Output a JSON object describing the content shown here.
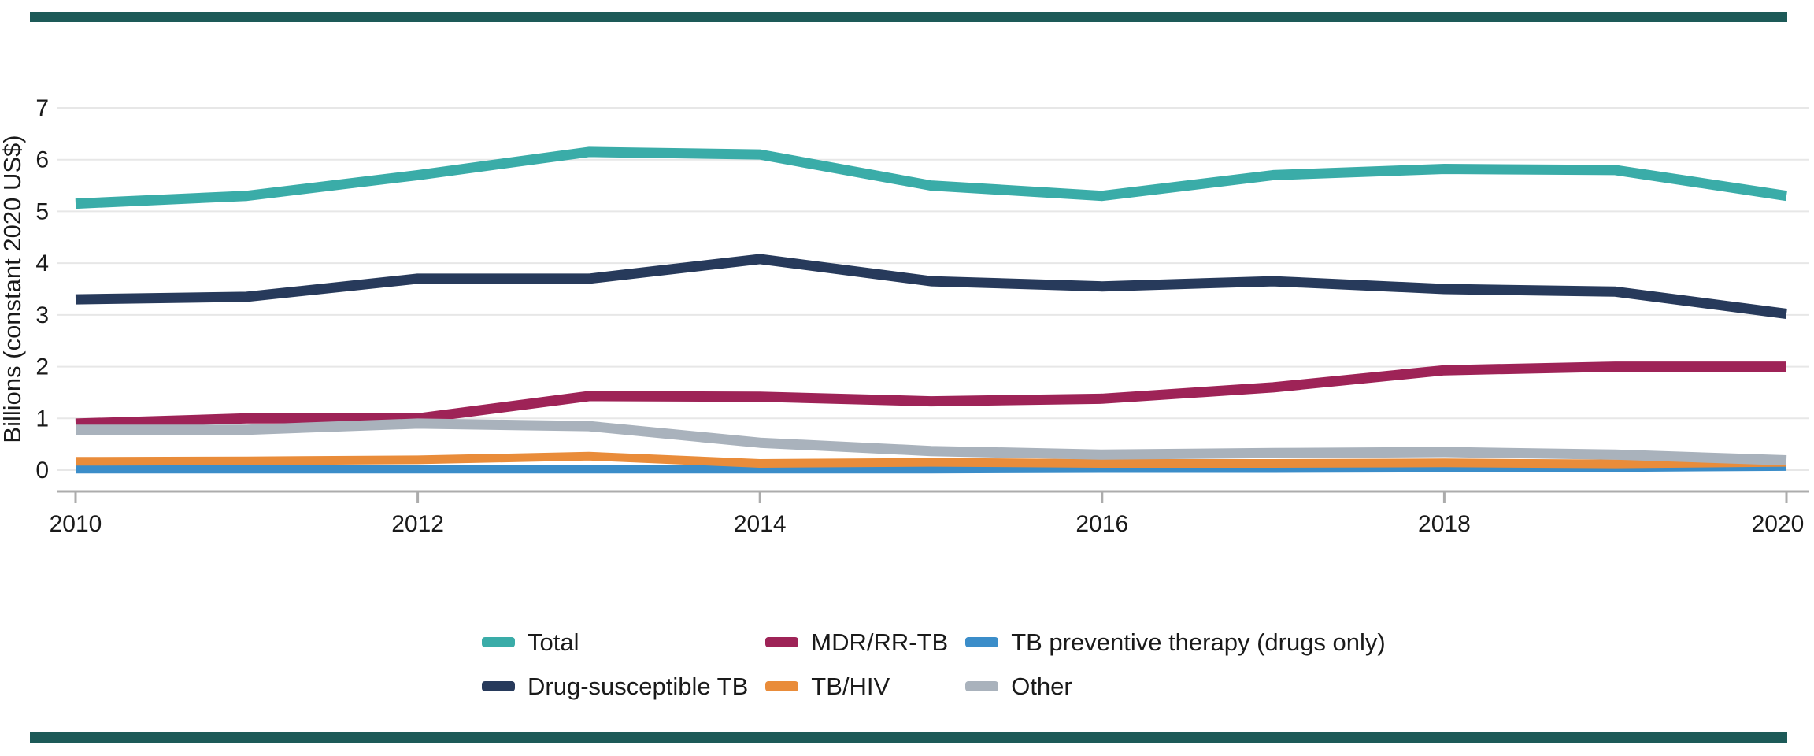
{
  "page": {
    "background": "#FFFFFF",
    "rule_color": "#1D5A58"
  },
  "chart_data": {
    "type": "line",
    "title": "",
    "xlabel": "",
    "ylabel": "Billions (constant 2020 US$)",
    "x": [
      2010,
      2011,
      2012,
      2013,
      2014,
      2015,
      2016,
      2017,
      2018,
      2019,
      2020
    ],
    "x_tick_years": [
      2010,
      2012,
      2014,
      2016,
      2018,
      2020
    ],
    "x_tick_labels": [
      "2010",
      "2012",
      "2014",
      "2016",
      "2018",
      "2020"
    ],
    "y_ticks": [
      0,
      1,
      2,
      3,
      4,
      5,
      6,
      7
    ],
    "y_tick_labels": [
      "0",
      "1",
      "2",
      "3",
      "4",
      "5",
      "6",
      "7"
    ],
    "ylim": [
      0,
      7
    ],
    "grid": "horizontal-only",
    "legend_position": "bottom",
    "series": [
      {
        "name": "Total",
        "color": "#3AACA8",
        "line_width": 13,
        "values": [
          5.15,
          5.3,
          5.7,
          6.15,
          6.1,
          5.5,
          5.3,
          5.7,
          5.82,
          5.8,
          5.3
        ]
      },
      {
        "name": "Drug-susceptible TB",
        "color": "#273A5B",
        "line_width": 13,
        "values": [
          3.3,
          3.35,
          3.7,
          3.7,
          4.08,
          3.65,
          3.55,
          3.65,
          3.5,
          3.45,
          3.02
        ]
      },
      {
        "name": "MDR/RR-TB",
        "color": "#9E2357",
        "line_width": 13,
        "values": [
          0.9,
          1.0,
          1.0,
          1.43,
          1.42,
          1.33,
          1.38,
          1.6,
          1.93,
          2.0,
          2.0
        ]
      },
      {
        "name": "TB preventive therapy (drugs only)",
        "color": "#3B8DC9",
        "line_width": 11,
        "values": [
          0.02,
          0.02,
          0.02,
          0.02,
          0.02,
          0.02,
          0.03,
          0.03,
          0.04,
          0.05,
          0.07
        ]
      },
      {
        "name": "TB/HIV",
        "color": "#E98C3A",
        "line_width": 11,
        "values": [
          0.17,
          0.18,
          0.2,
          0.27,
          0.13,
          0.15,
          0.13,
          0.13,
          0.14,
          0.12,
          0.15
        ]
      },
      {
        "name": "Other",
        "color": "#A9B2BC",
        "line_width": 13,
        "values": [
          0.78,
          0.78,
          0.9,
          0.85,
          0.53,
          0.37,
          0.3,
          0.33,
          0.35,
          0.3,
          0.19
        ]
      }
    ],
    "legend_columns": [
      [
        "Total",
        "Drug-susceptible TB"
      ],
      [
        "MDR/RR-TB",
        "TB/HIV"
      ],
      [
        "TB preventive therapy (drugs only)",
        "Other"
      ]
    ],
    "style": {
      "gridline_color": "#E7E7E7",
      "axis_color": "#ACACAC",
      "text_color": "#1A1A1A",
      "tick_font_size": 30,
      "axis_title_font_size": 31
    }
  }
}
